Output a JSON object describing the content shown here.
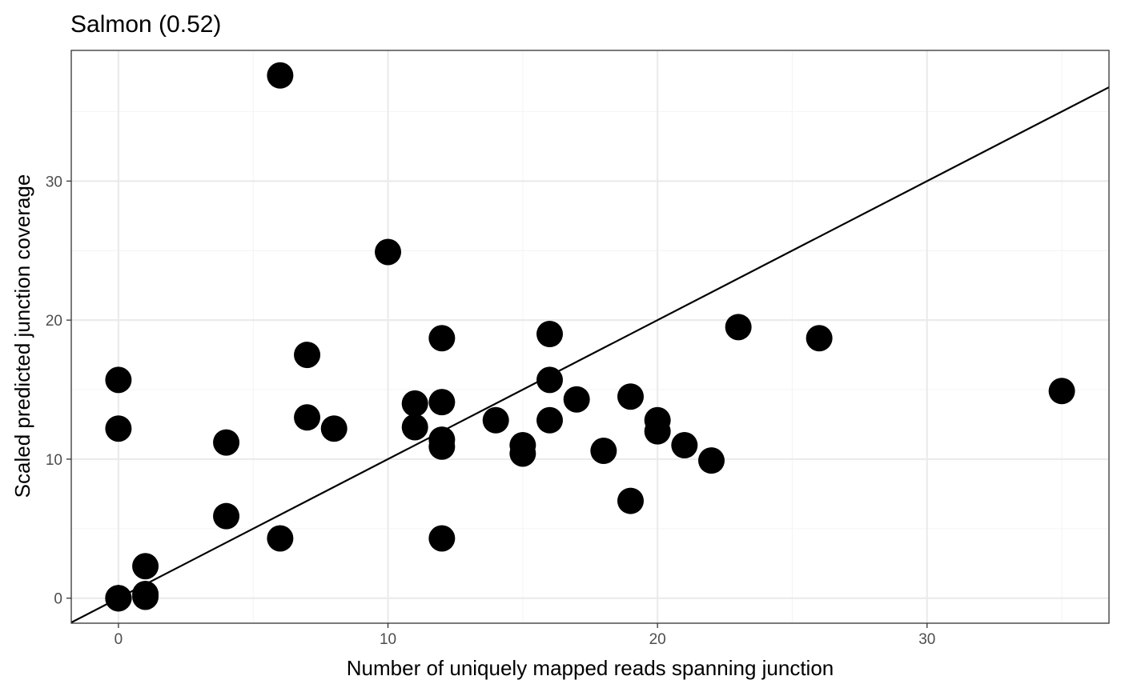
{
  "chart_data": {
    "type": "scatter",
    "title": "Salmon (0.52)",
    "xlabel": "Number of uniquely mapped reads spanning junction",
    "ylabel": "Scaled predicted junction coverage",
    "xlim": [
      -1.75,
      36.75
    ],
    "ylim": [
      -1.8,
      39.4
    ],
    "x_ticks": [
      0,
      10,
      20,
      30
    ],
    "y_ticks": [
      0,
      10,
      20,
      30
    ],
    "x_tick_labels": [
      "0",
      "10",
      "20",
      "30"
    ],
    "y_tick_labels": [
      "0",
      "10",
      "20",
      "30"
    ],
    "grid": true,
    "reference_line": {
      "slope": 1,
      "intercept": 0
    },
    "colors": {
      "points": "#000000",
      "line": "#000000",
      "grid_major": "#ebebeb",
      "grid_minor": "#f5f5f5",
      "panel_border": "#333333"
    },
    "points": [
      {
        "x": 0,
        "y": 0
      },
      {
        "x": 0,
        "y": 0
      },
      {
        "x": 0,
        "y": 0
      },
      {
        "x": 0,
        "y": 0
      },
      {
        "x": 0,
        "y": 12.2
      },
      {
        "x": 0,
        "y": 15.7
      },
      {
        "x": 1,
        "y": 0.1
      },
      {
        "x": 1,
        "y": 0.3
      },
      {
        "x": 1,
        "y": 2.3
      },
      {
        "x": 4,
        "y": 5.9
      },
      {
        "x": 4,
        "y": 11.2
      },
      {
        "x": 6,
        "y": 4.3
      },
      {
        "x": 6,
        "y": 37.6
      },
      {
        "x": 7,
        "y": 13.0
      },
      {
        "x": 7,
        "y": 17.5
      },
      {
        "x": 8,
        "y": 12.2
      },
      {
        "x": 10,
        "y": 24.9
      },
      {
        "x": 11,
        "y": 12.3
      },
      {
        "x": 11,
        "y": 14.0
      },
      {
        "x": 12,
        "y": 4.3
      },
      {
        "x": 12,
        "y": 10.9
      },
      {
        "x": 12,
        "y": 11.4
      },
      {
        "x": 12,
        "y": 14.1
      },
      {
        "x": 12,
        "y": 18.7
      },
      {
        "x": 14,
        "y": 12.8
      },
      {
        "x": 15,
        "y": 10.4
      },
      {
        "x": 15,
        "y": 11.0
      },
      {
        "x": 16,
        "y": 12.8
      },
      {
        "x": 16,
        "y": 15.7
      },
      {
        "x": 16,
        "y": 19.0
      },
      {
        "x": 17,
        "y": 14.3
      },
      {
        "x": 18,
        "y": 10.6
      },
      {
        "x": 19,
        "y": 7.0
      },
      {
        "x": 19,
        "y": 14.5
      },
      {
        "x": 20,
        "y": 12.0
      },
      {
        "x": 20,
        "y": 12.8
      },
      {
        "x": 21,
        "y": 11.0
      },
      {
        "x": 22,
        "y": 9.9
      },
      {
        "x": 23,
        "y": 19.5
      },
      {
        "x": 26,
        "y": 18.7
      },
      {
        "x": 35,
        "y": 14.9
      }
    ]
  }
}
